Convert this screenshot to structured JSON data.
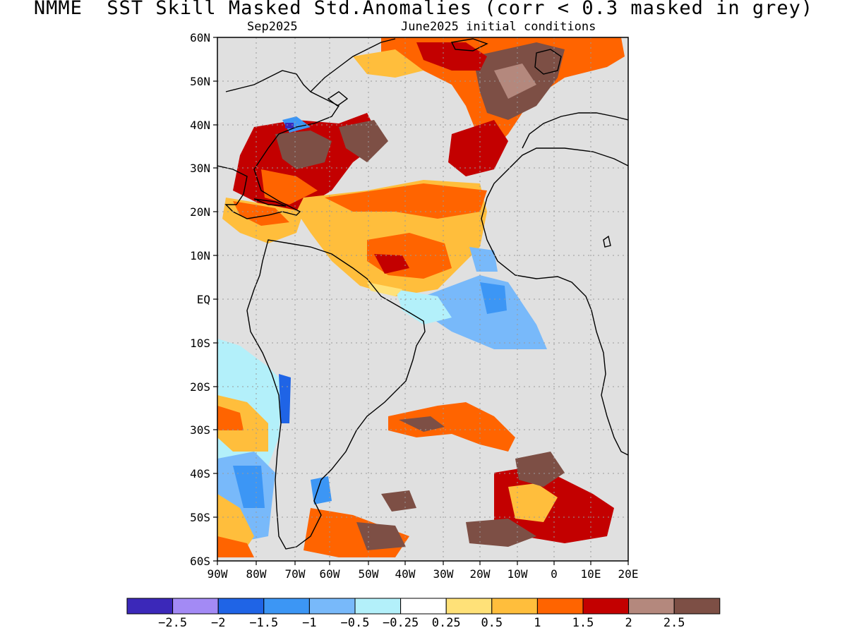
{
  "title": "NMME  SST Skill Masked Std.Anomalies (corr < 0.3 masked in grey)",
  "subtitle_left": "Sep2025",
  "subtitle_right": "June2025 initial conditions",
  "lat_ticks": [
    "60N",
    "50N",
    "40N",
    "30N",
    "20N",
    "10N",
    "EQ",
    "10S",
    "20S",
    "30S",
    "40S",
    "50S",
    "60S"
  ],
  "lon_ticks": [
    "90W",
    "80W",
    "70W",
    "60W",
    "50W",
    "40W",
    "30W",
    "20W",
    "10W",
    "0",
    "10E",
    "20E"
  ],
  "colorbar": {
    "colors": [
      "#3b28b9",
      "#a38af5",
      "#1f64e6",
      "#3c96f5",
      "#78b9fa",
      "#b3f0fa",
      "#ffffff",
      "#ffe178",
      "#ffbe3c",
      "#ff6400",
      "#c30000",
      "#b4887d",
      "#7d4f45"
    ],
    "labels": [
      "-2.5",
      "-2",
      "-1.5",
      "-1",
      "-0.5",
      "-0.25",
      "0.25",
      "0.5",
      "1",
      "1.5",
      "2",
      "2.5"
    ]
  },
  "mask_color": "#e0e0e0"
}
